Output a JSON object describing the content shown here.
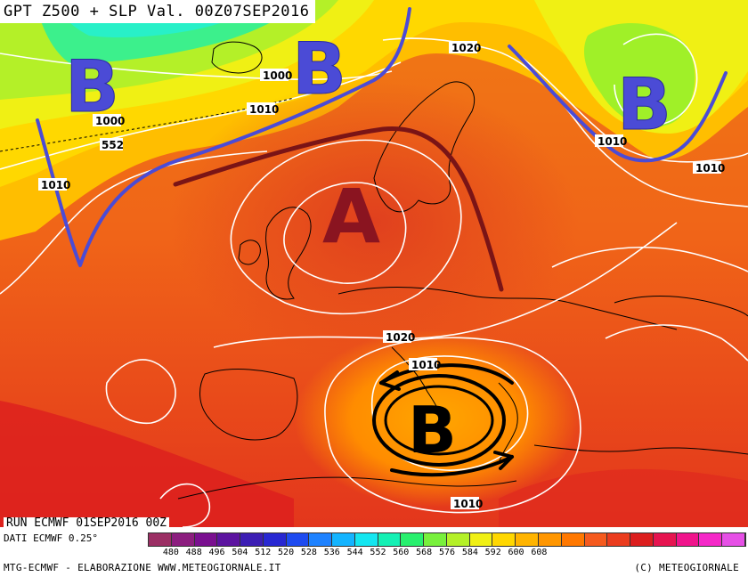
{
  "title": "GPT Z500 + SLP Val. 00Z07SEP2016",
  "run_info": "RUN ECMWF 01SEP2016 00Z",
  "data_source": "DATI ECMWF 0.25°",
  "footer_left": "MTG-ECMWF - ELABORAZIONE WWW.METEOGIORNALE.IT",
  "footer_right": "(C) METEOGIORNALE",
  "pressure_letters": {
    "low_atlantic": "B",
    "low_north": "B",
    "low_russia": "B",
    "high_center": "A",
    "low_mediterranean": "B"
  },
  "isobar_labels": {
    "l1000_iceland": "1000",
    "l1000_atlantic": "1000",
    "l1010_north": "1010",
    "l1010_west": "1010",
    "l1020_norway": "1020",
    "l1010_russia": "1010",
    "l1010_east": "1010",
    "l1020_center": "1020",
    "l1010_med_north": "1010",
    "l1010_med_south": "1010",
    "l552": "552"
  },
  "legend": {
    "ticks": [
      "480",
      "488",
      "496",
      "504",
      "512",
      "520",
      "528",
      "536",
      "544",
      "552",
      "560",
      "568",
      "576",
      "584",
      "592",
      "600",
      "608"
    ],
    "colors": [
      "#9b2f64",
      "#8c1e7f",
      "#7a1090",
      "#5c14a0",
      "#3c1eb4",
      "#2828d2",
      "#1e4bf0",
      "#1e82ff",
      "#14b4ff",
      "#14e6f0",
      "#14f0b4",
      "#28f06e",
      "#78f03c",
      "#b4f028",
      "#f0f014",
      "#ffd700",
      "#ffb400",
      "#ff9600",
      "#ff7800",
      "#f55a1e",
      "#eb3c1e",
      "#dc1e1e",
      "#e61450",
      "#f0148c",
      "#f528c8",
      "#e650e6"
    ]
  }
}
